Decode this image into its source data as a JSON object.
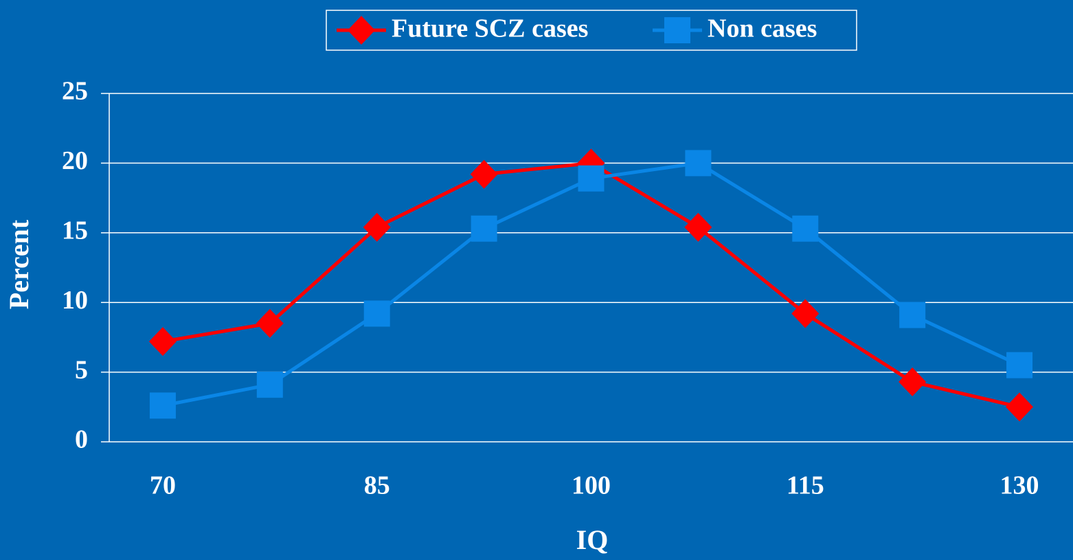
{
  "chart_data": {
    "type": "line",
    "x_label": "IQ",
    "y_label": "Percent",
    "categories": [
      "70",
      null,
      "85",
      null,
      "100",
      null,
      "115",
      null,
      "130"
    ],
    "series": [
      {
        "name": "Future SCZ cases",
        "color": "#ff0000",
        "marker": "diamond",
        "values": [
          7.2,
          8.5,
          15.4,
          19.2,
          20,
          15.4,
          9.2,
          4.3,
          2.5
        ]
      },
      {
        "name": "Non cases",
        "color": "#0a86e6",
        "marker": "square",
        "values": [
          2.6,
          4.1,
          9.2,
          15.3,
          18.9,
          20,
          15.3,
          9.1,
          5.5
        ]
      }
    ],
    "ylim": [
      0,
      25
    ],
    "yticks": [
      0,
      5,
      10,
      15,
      20,
      25
    ],
    "grid": true,
    "legend": "top"
  }
}
